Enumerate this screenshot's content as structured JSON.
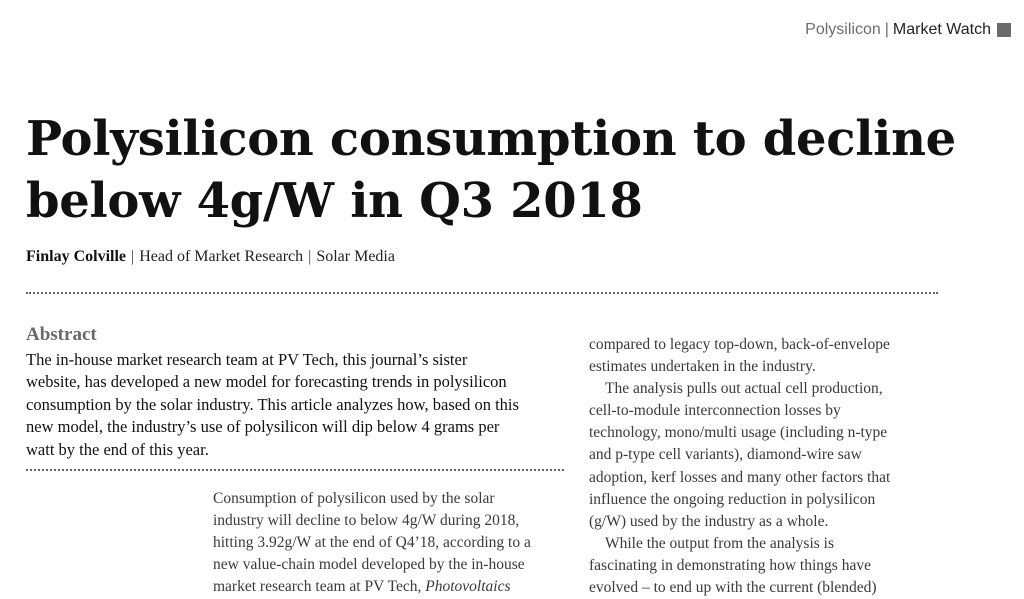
{
  "running_header": {
    "section": "Polysilicon",
    "separator": "|",
    "page_tag": "Market Watch"
  },
  "article": {
    "title_line_1": "Polysilicon consumption to decline",
    "title_line_2": "below 4g/W in Q3 2018",
    "byline": {
      "author": "Finlay Colville",
      "separator": "|",
      "role": "Head of Market Research",
      "organisation": "Solar Media"
    },
    "abstract_label": "Abstract",
    "abstract_lines": [
      "The in-house market research team at PV Tech, this journal’s sister",
      "website, has developed a new model for forecasting trends in polysilicon",
      "consumption by the solar industry. This article analyzes how, based on this",
      "new model, the industry’s use of polysilicon will dip below 4 grams per",
      "watt by the end of this year."
    ],
    "column_1": {
      "lines": [
        "Consumption of polysilicon used by the solar",
        "industry will decline to below 4g/W during 2018,",
        "hitting 3.92g/W at the end of Q4’18, according to a",
        "new value-chain model developed by the in-house"
      ],
      "last_line_prefix": "market research team at PV Tech, ",
      "last_line_italic": "Photovoltaics"
    },
    "column_2": {
      "para_1_lines": [
        "compared to legacy top-down, back-of-envelope",
        "estimates undertaken in the industry."
      ],
      "para_2_lines": [
        "The analysis pulls out actual cell production,",
        "cell-to-module interconnection losses by",
        "technology, mono/multi usage (including n-type",
        "and p-type cell variants), diamond-wire saw",
        "adoption, kerf losses and many other factors that",
        "influence the ongoing reduction in polysilicon",
        "(g/W) used by the industry as a whole."
      ],
      "para_3_lines": [
        "While the output from the analysis is",
        "fascinating in demonstrating how things have",
        "evolved – to end up with the current (blended)"
      ]
    }
  }
}
